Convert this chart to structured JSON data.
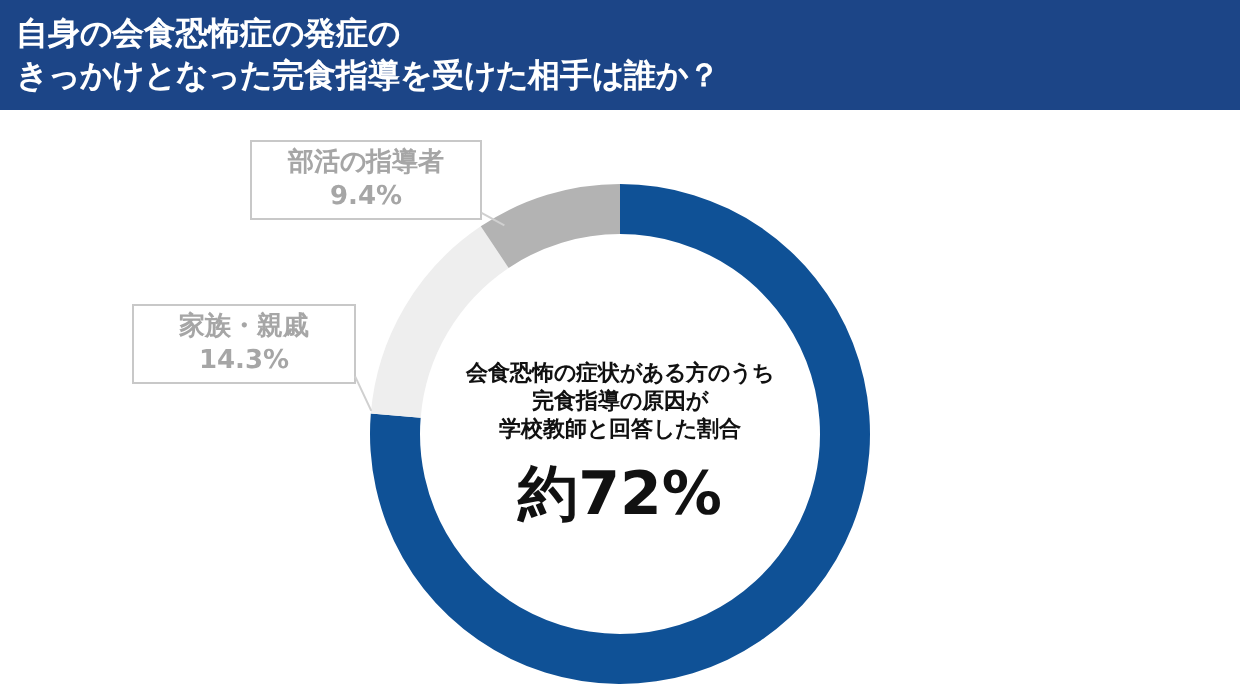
{
  "chart_data": {
    "type": "donut",
    "title": "自身の会食恐怖症の発症のきっかけとなった完食指導を受けた相手は誰か？",
    "categories": [
      null,
      "家族・親戚",
      "部活の指導者"
    ],
    "values": [
      76.3,
      14.3,
      9.4
    ],
    "value_labels": [
      null,
      "14.3%",
      "9.4%"
    ],
    "colors": [
      "#0f5196",
      "#eeeeee",
      "#b3b3b3"
    ],
    "annotations": [
      "会食恐怖の症状がある方のうち",
      "完食指導の原因が",
      "学校教師と回答した割合",
      "約72%"
    ],
    "legend": false
  }
}
